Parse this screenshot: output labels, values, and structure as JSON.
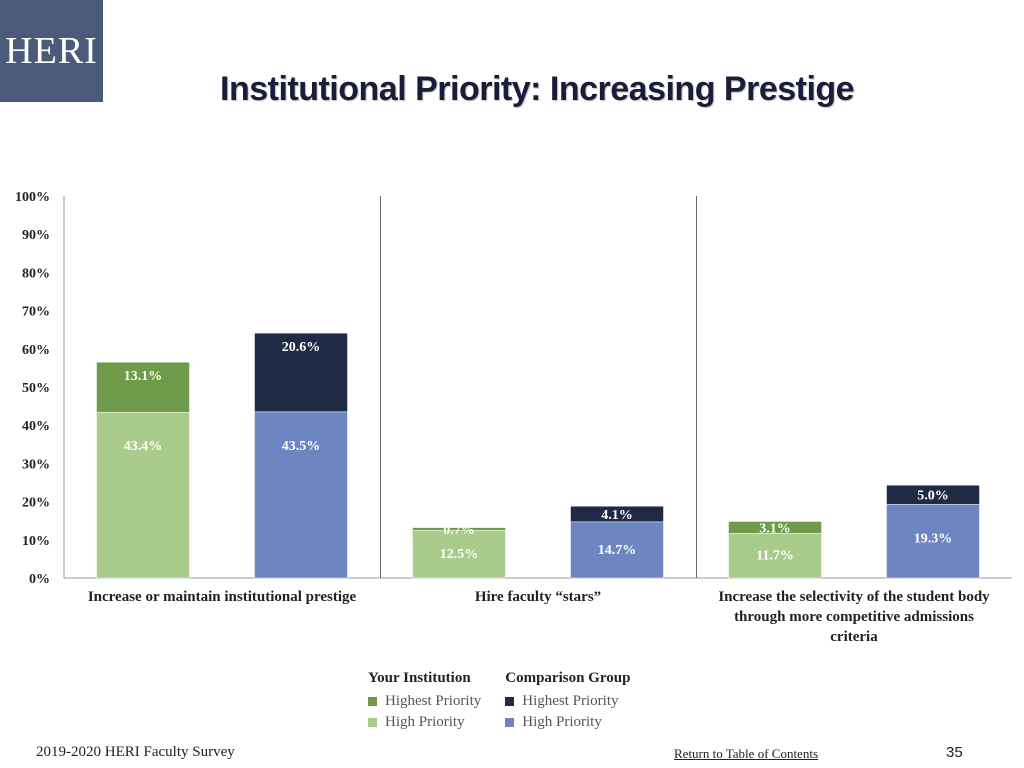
{
  "logo": {
    "text": "HERI"
  },
  "title": "Institutional Priority: Increasing Prestige",
  "chart_data": {
    "type": "bar",
    "stacked": true,
    "ylim": [
      0,
      100
    ],
    "yticks": [
      "0%",
      "10%",
      "20%",
      "30%",
      "40%",
      "50%",
      "60%",
      "70%",
      "80%",
      "90%",
      "100%"
    ],
    "categories": [
      "Increase or maintain institutional prestige",
      "Hire faculty “stars”",
      "Increase the selectivity of the student body through more competitive admissions criteria"
    ],
    "category_lines": [
      [
        "Increase or maintain institutional prestige"
      ],
      [
        "Hire faculty “stars”"
      ],
      [
        "Increase the selectivity of the student body",
        "through more competitive admissions",
        "criteria"
      ]
    ],
    "groups": [
      {
        "name": "Your Institution",
        "series": [
          {
            "name": "High Priority",
            "color": "#a9cc8c",
            "values": [
              43.4,
              12.5,
              11.7
            ],
            "labels": [
              "43.4%",
              "12.5%",
              "11.7%"
            ]
          },
          {
            "name": "Highest Priority",
            "color": "#6f9a4a",
            "values": [
              13.1,
              0.7,
              3.1
            ],
            "labels": [
              "13.1%",
              "0.7%",
              "3.1%"
            ]
          }
        ]
      },
      {
        "name": "Comparison Group",
        "series": [
          {
            "name": "High Priority",
            "color": "#6d85c1",
            "values": [
              43.5,
              14.7,
              19.3
            ],
            "labels": [
              "43.5%",
              "14.7%",
              "19.3%"
            ]
          },
          {
            "name": "Highest Priority",
            "color": "#1f2a45",
            "values": [
              20.6,
              4.1,
              5.0
            ],
            "labels": [
              "20.6%",
              "4.1%",
              "5.0%"
            ]
          }
        ]
      }
    ],
    "grid": false
  },
  "legend": {
    "institution_heading": "Your Institution",
    "comparison_heading": "Comparison Group",
    "inst_highest": "Highest Priority",
    "inst_high": "High Priority",
    "comp_highest": "Highest Priority",
    "comp_high": "High Priority",
    "colors": {
      "inst_highest": "#6f9a4a",
      "inst_high": "#a9cc8c",
      "comp_highest": "#1f2a45",
      "comp_high": "#6d85c1"
    }
  },
  "footer": {
    "survey": "2019-2020 HERI Faculty Survey",
    "link": "Return to Table of Contents",
    "page_number": "35"
  }
}
